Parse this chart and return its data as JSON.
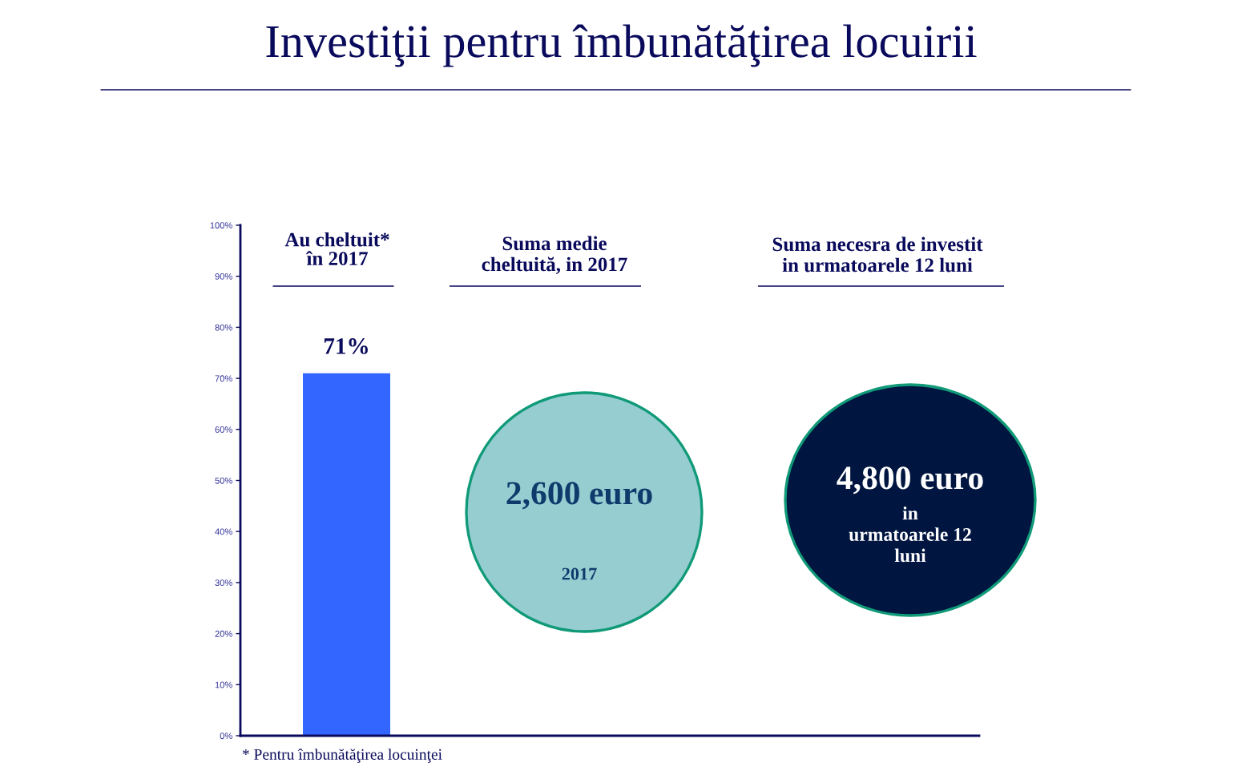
{
  "chart_data": [
    {
      "type": "bar",
      "title": "Investiţii pentru îmbunătăţirea locuirii",
      "subtitle": "Au cheltuit*\nîn 2017",
      "categories": [
        null
      ],
      "values": [
        71
      ],
      "color": "#3366ff",
      "value_labels": [
        "71%"
      ],
      "ylim": [
        0,
        100
      ],
      "yticks": [
        {
          "value": 0,
          "label": "0%"
        },
        {
          "value": 10,
          "label": "10%"
        },
        {
          "value": 20,
          "label": "20%"
        },
        {
          "value": 30,
          "label": "30%"
        },
        {
          "value": 40,
          "label": "40%"
        },
        {
          "value": 50,
          "label": "50%"
        },
        {
          "value": 60,
          "label": "60%"
        },
        {
          "value": 70,
          "label": "70%"
        },
        {
          "value": 80,
          "label": "80%"
        },
        {
          "value": 90,
          "label": "90%"
        },
        {
          "value": 100,
          "label": "100%"
        }
      ],
      "tick_labels": "y",
      "annotations": [
        "* Pentru îmbunătăţirea locuinţei"
      ]
    },
    {
      "type": "other",
      "title": "Suma medie\ncheltuită, in 2017",
      "annotations": [
        "2,600 euro",
        "2017"
      ]
    },
    {
      "type": "other",
      "title": "Suma necesra de investit\nin urmatoarele 12 luni",
      "annotations": [
        "4,800 euro",
        "in\nurmatoarele 12\nluni"
      ]
    }
  ]
}
